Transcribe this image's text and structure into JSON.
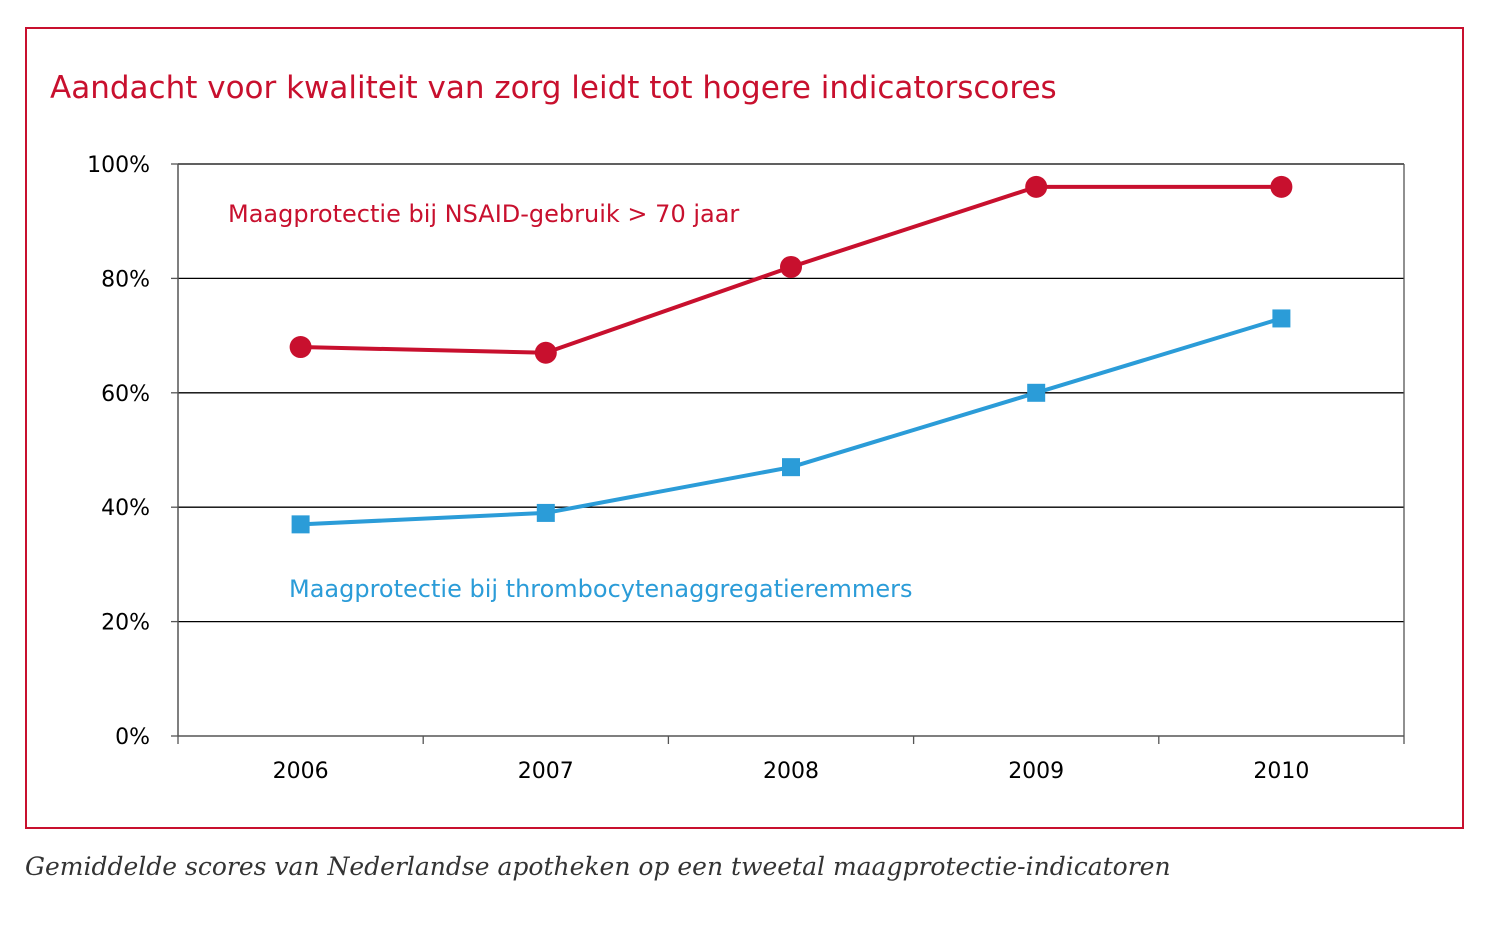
{
  "colors": {
    "frame": "#c8102e",
    "title": "#c8102e",
    "series_red": "#c8102e",
    "series_blue": "#2b9cd8",
    "grid": "#000000",
    "axis": "#555555"
  },
  "caption": "Gemiddelde scores van Nederlandse apotheken op een tweetal maagprotectie-indicatoren",
  "chart_data": {
    "type": "line",
    "title": "Aandacht voor kwaliteit van zorg leidt tot hogere indicatorscores",
    "xlabel": "",
    "ylabel": "",
    "categories": [
      "2006",
      "2007",
      "2008",
      "2009",
      "2010"
    ],
    "ylim": [
      0,
      100
    ],
    "yticks": [
      0,
      20,
      40,
      60,
      80,
      100
    ],
    "ytick_labels": [
      "0%",
      "20%",
      "40%",
      "60%",
      "80%",
      "100%"
    ],
    "grid": true,
    "series": [
      {
        "name": "Maagprotectie bij NSAID-gebruik > 70 jaar",
        "values": [
          68,
          67,
          82,
          96,
          96
        ],
        "marker": "circle",
        "color": "#c8102e"
      },
      {
        "name": "Maagprotectie bij thrombocytenaggregatieremmers",
        "values": [
          37,
          39,
          47,
          60,
          73
        ],
        "marker": "square",
        "color": "#2b9cd8"
      }
    ]
  }
}
